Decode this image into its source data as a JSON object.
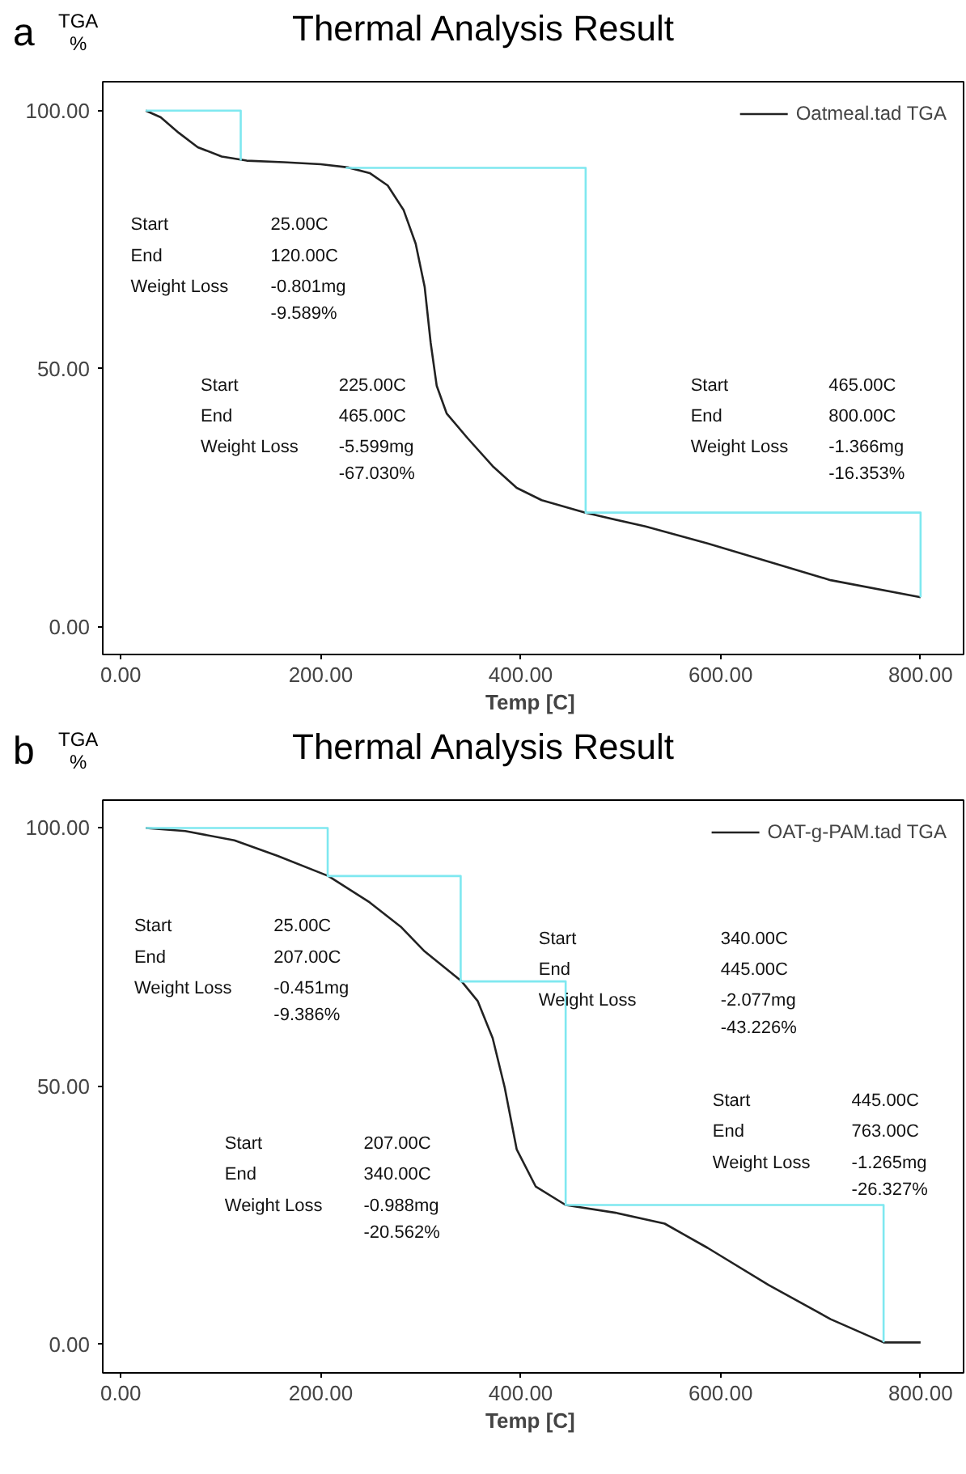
{
  "chart_data": [
    {
      "type": "line",
      "title": "Thermal Analysis Result",
      "xlabel": "Temp  [C]",
      "ylabel": "TGA %",
      "xlim": [
        -18,
        843
      ],
      "ylim": [
        -5.4,
        105.6
      ],
      "xticks": [
        {
          "value": 0,
          "label": "0.00"
        },
        {
          "value": 200,
          "label": "200.00"
        },
        {
          "value": 400,
          "label": "400.00"
        },
        {
          "value": 600,
          "label": "600.00"
        },
        {
          "value": 800,
          "label": "800.00"
        }
      ],
      "yticks": [
        {
          "value": 0,
          "label": "0.00"
        },
        {
          "value": 50,
          "label": "50.00"
        },
        {
          "value": 100,
          "label": "100.00"
        }
      ],
      "grid": false,
      "legend": "top right",
      "series": [
        {
          "name": "Oatmeal.tad TGA",
          "color": "#222222",
          "x": [
            25,
            40,
            58,
            77,
            101,
            126,
            163,
            200,
            227,
            249,
            267,
            283,
            295,
            304,
            310,
            316,
            326,
            347,
            372,
            396,
            421,
            464,
            525,
            587,
            648,
            710,
            800
          ],
          "values": [
            100,
            98.7,
            95.7,
            92.9,
            91.1,
            90.3,
            90.0,
            89.6,
            89.0,
            87.9,
            85.5,
            80.7,
            74.2,
            65.8,
            55.0,
            46.7,
            41.3,
            36.5,
            31.1,
            26.9,
            24.5,
            22.1,
            19.4,
            16.1,
            12.6,
            9.0,
            5.7
          ]
        },
        {
          "color": "#7fe8f0",
          "x": [
            25,
            120,
            120
          ],
          "values": [
            100,
            100,
            90.3
          ]
        },
        {
          "color": "#7fe8f0",
          "x": [
            225,
            465,
            465,
            800,
            800
          ],
          "values": [
            88.9,
            88.9,
            22.1,
            22.1,
            5.7
          ]
        }
      ],
      "annotations": [
        "a",
        "Start",
        "25.00C",
        "End",
        "120.00C",
        "Weight Loss",
        "-0.801mg",
        "-9.589%",
        "Start",
        "225.00C",
        "End",
        "465.00C",
        "Weight Loss",
        "-5.599mg",
        "-67.030%",
        "Start",
        "465.00C",
        "End",
        "800.00C",
        "Weight Loss",
        "-1.366mg",
        "-16.353%"
      ]
    },
    {
      "type": "line",
      "title": "Thermal Analysis Result",
      "xlabel": "Temp  [C]",
      "ylabel": "TGA %",
      "xlim": [
        -18,
        843
      ],
      "ylim": [
        -5.5,
        105.4
      ],
      "xticks": [
        {
          "value": 0,
          "label": "0.00"
        },
        {
          "value": 200,
          "label": "200.00"
        },
        {
          "value": 400,
          "label": "400.00"
        },
        {
          "value": 600,
          "label": "600.00"
        },
        {
          "value": 800,
          "label": "800.00"
        }
      ],
      "yticks": [
        {
          "value": 0,
          "label": "0.00"
        },
        {
          "value": 50,
          "label": "50.00"
        },
        {
          "value": 100,
          "label": "100.00"
        }
      ],
      "grid": false,
      "legend": "top right",
      "series": [
        {
          "name": "OAT-g-PAM.tad TGA",
          "color": "#222222",
          "x": [
            25,
            64.5,
            113.7,
            157,
            207.7,
            249,
            280,
            304,
            341,
            357,
            372,
            384,
            396,
            415,
            445,
            495,
            544,
            587,
            648,
            710,
            763,
            800
          ],
          "values": [
            100,
            99.4,
            97.6,
            94.6,
            90.7,
            85.6,
            80.9,
            76.1,
            70.3,
            66.5,
            59.3,
            49.8,
            37.8,
            30.6,
            27.0,
            25.5,
            23.4,
            18.7,
            11.5,
            4.9,
            0.4,
            0.4
          ]
        },
        {
          "color": "#7fe8f0",
          "x": [
            25,
            207,
            207,
            340,
            340,
            445,
            445,
            763,
            763
          ],
          "values": [
            100,
            100,
            90.7,
            90.7,
            70.3,
            70.3,
            27.0,
            27.0,
            0.4
          ]
        }
      ],
      "annotations": [
        "b",
        "Start",
        "25.00C",
        "End",
        "207.00C",
        "Weight Loss",
        "-0.451mg",
        "-9.386%",
        "Start",
        "340.00C",
        "End",
        "445.00C",
        "Weight Loss",
        "-2.077mg",
        "-43.226%",
        "Start",
        "207.00C",
        "End",
        "340.00C",
        "Weight Loss",
        "-0.988mg",
        "-20.562%",
        "Start",
        "445.00C",
        "End",
        "763.00C",
        "Weight Loss",
        "-1.265mg",
        "-26.327%"
      ]
    }
  ]
}
